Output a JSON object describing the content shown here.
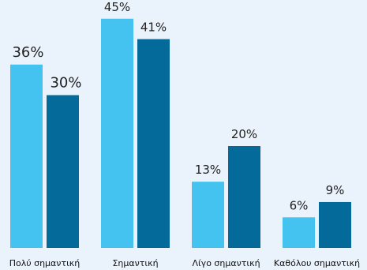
{
  "chart_data": {
    "type": "bar",
    "categories": [
      "Πολύ σημαντική",
      "Σημαντική",
      "Λίγο σημαντική",
      "Καθόλου σημαντική"
    ],
    "series": [
      {
        "values": [
          36,
          45,
          13,
          6
        ],
        "labels": [
          "36%",
          "45%",
          "13%",
          "6%"
        ],
        "color": "#44c3f0"
      },
      {
        "values": [
          30,
          41,
          20,
          9
        ],
        "labels": [
          "30%",
          "41%",
          "20%",
          "9%"
        ],
        "color": "#036a9a"
      }
    ],
    "title": "",
    "xlabel": "",
    "ylabel": "",
    "ylim": [
      0,
      50
    ],
    "grid": false,
    "legend": "none",
    "background": "#eaf3fb"
  }
}
